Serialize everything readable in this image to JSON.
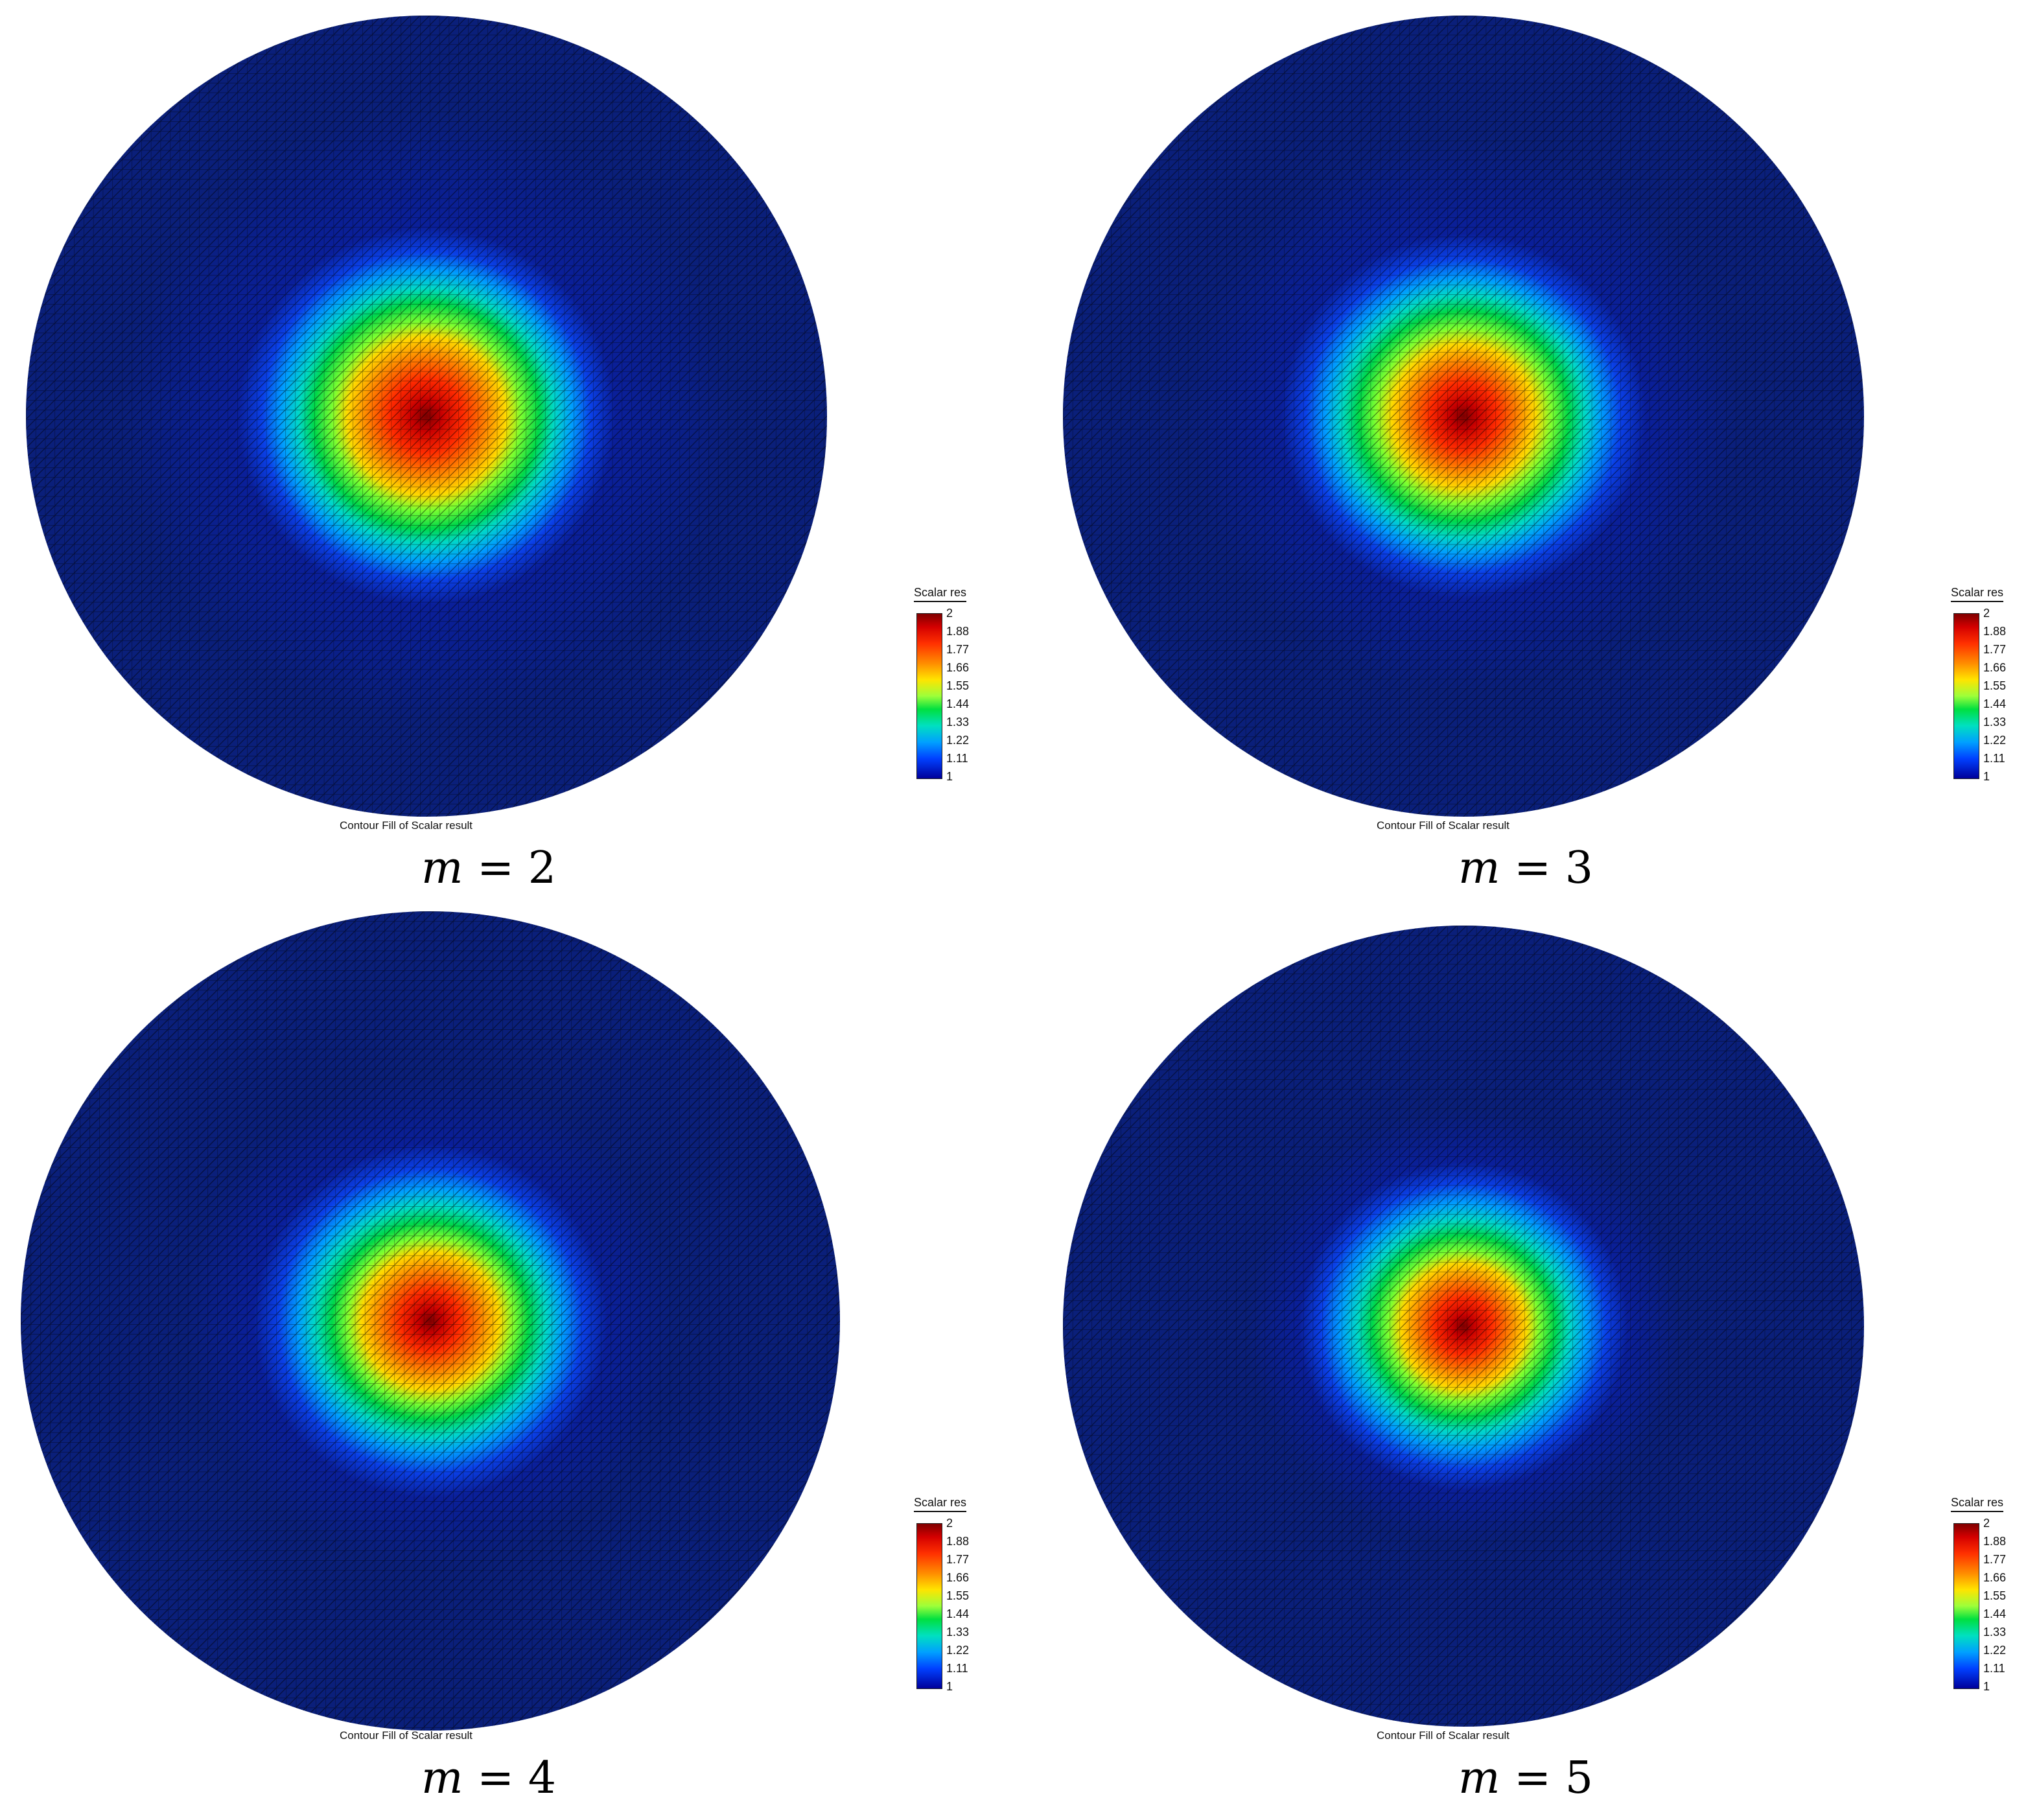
{
  "panels": [
    {
      "caption_var": "m",
      "caption_rest": " = 2",
      "colorbar_title": "Scalar res",
      "colorbar_labels": [
        "2",
        "1.88",
        "1.77",
        "1.66",
        "1.55",
        "1.44",
        "1.33",
        "1.22",
        "1.11",
        "1"
      ],
      "footer": "Contour Fill of Scalar result"
    },
    {
      "caption_var": "m",
      "caption_rest": " = 3",
      "colorbar_title": "Scalar res",
      "colorbar_labels": [
        "2",
        "1.88",
        "1.77",
        "1.66",
        "1.55",
        "1.44",
        "1.33",
        "1.22",
        "1.11",
        "1"
      ],
      "footer": "Contour Fill of Scalar result"
    },
    {
      "caption_var": "m",
      "caption_rest": " = 4",
      "colorbar_title": "Scalar res",
      "colorbar_labels": [
        "2",
        "1.88",
        "1.77",
        "1.66",
        "1.55",
        "1.44",
        "1.33",
        "1.22",
        "1.11",
        "1"
      ],
      "footer": "Contour Fill of Scalar result"
    },
    {
      "caption_var": "m",
      "caption_rest": " = 5",
      "colorbar_title": "Scalar res",
      "colorbar_labels": [
        "2",
        "1.88",
        "1.77",
        "1.66",
        "1.55",
        "1.44",
        "1.33",
        "1.22",
        "1.11",
        "1"
      ],
      "footer": "Contour Fill of Scalar result"
    }
  ],
  "colors": {
    "background_field": "#0a1f7a",
    "peak": "#8b0000",
    "mesh_lines": "#000000"
  }
}
